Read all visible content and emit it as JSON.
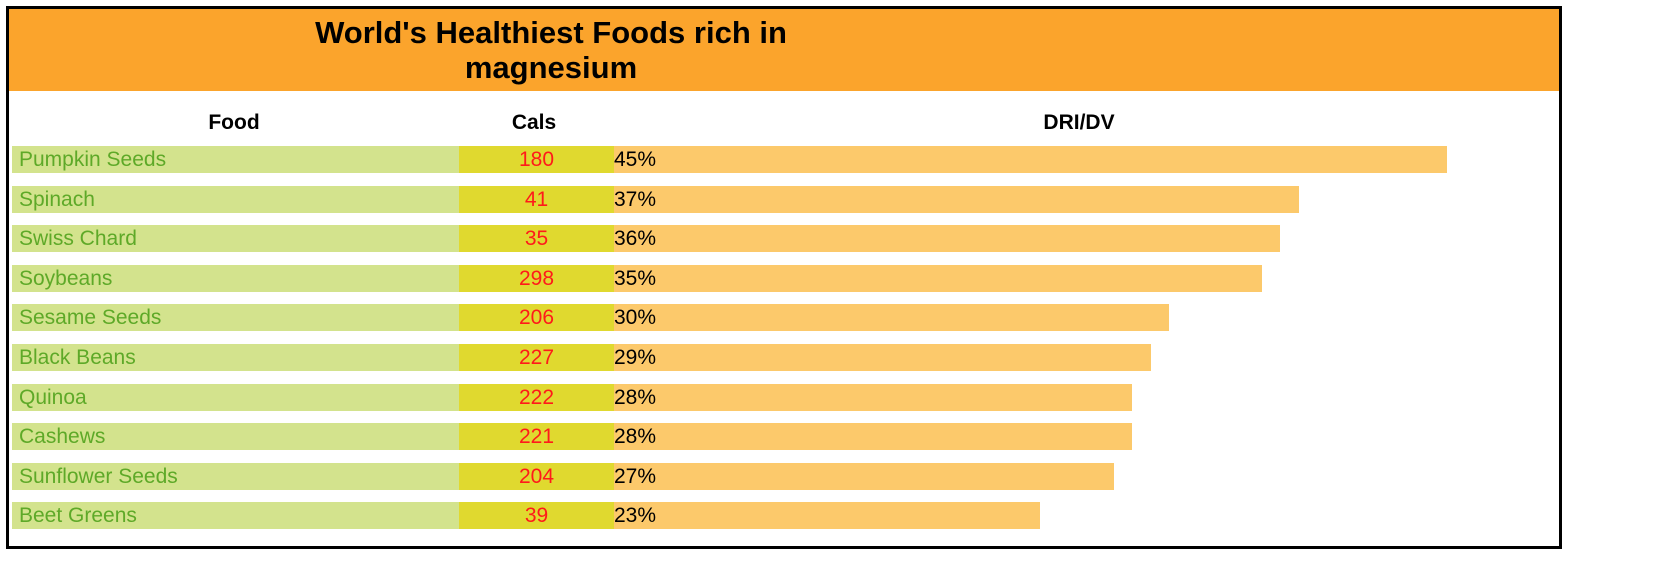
{
  "chart_data": {
    "type": "table",
    "title": "World's Healthiest Foods rich in magnesium",
    "columns": [
      "Food",
      "Cals",
      "DRI/DV"
    ],
    "dri_max_percent": 45,
    "rows": [
      {
        "food": "Pumpkin Seeds",
        "cals": "180",
        "dri": 45,
        "dri_label": "45%"
      },
      {
        "food": "Spinach",
        "cals": "41",
        "dri": 37,
        "dri_label": "37%"
      },
      {
        "food": "Swiss Chard",
        "cals": "35",
        "dri": 36,
        "dri_label": "36%"
      },
      {
        "food": "Soybeans",
        "cals": "298",
        "dri": 35,
        "dri_label": "35%"
      },
      {
        "food": "Sesame Seeds",
        "cals": "206",
        "dri": 30,
        "dri_label": "30%"
      },
      {
        "food": "Black Beans",
        "cals": "227",
        "dri": 29,
        "dri_label": "29%"
      },
      {
        "food": "Quinoa",
        "cals": "222",
        "dri": 28,
        "dri_label": "28%"
      },
      {
        "food": "Cashews",
        "cals": "221",
        "dri": 28,
        "dri_label": "28%"
      },
      {
        "food": "Sunflower Seeds",
        "cals": "204",
        "dri": 27,
        "dri_label": "27%"
      },
      {
        "food": "Beet Greens",
        "cals": "39",
        "dri": 23,
        "dri_label": "23%"
      }
    ]
  },
  "colors": {
    "title_band": "#fba42c",
    "food_cell": "#d3e38d",
    "food_text": "#5ea928",
    "cals_cell": "#e0d92f",
    "cals_text": "#ff1a1a",
    "dri_bar": "#fcc96b"
  }
}
